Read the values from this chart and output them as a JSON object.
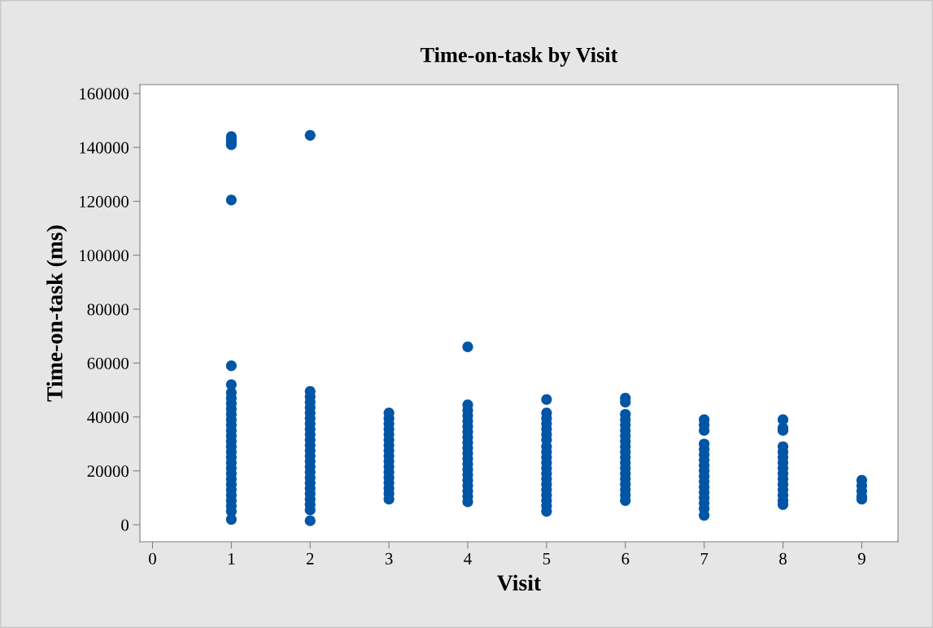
{
  "chart_data": {
    "type": "scatter",
    "title": "Time-on-task by Visit",
    "xlabel": "Visit",
    "ylabel": "Time-on-task (ms)",
    "series": [
      {
        "color": "#0055a5",
        "x": [
          1,
          1,
          1,
          1,
          1,
          1,
          1,
          1,
          1,
          1,
          1,
          1,
          1,
          1,
          1,
          1,
          1,
          1,
          1,
          1,
          1,
          1,
          1,
          1,
          1,
          1,
          1,
          1,
          1,
          1,
          1,
          2,
          2,
          2,
          2,
          2,
          2,
          2,
          2,
          2,
          2,
          2,
          2,
          2,
          2,
          2,
          2,
          2,
          2,
          2,
          2,
          2,
          2,
          2,
          2,
          2,
          3,
          3,
          3,
          3,
          3,
          3,
          3,
          3,
          3,
          3,
          3,
          3,
          3,
          3,
          3,
          3,
          3,
          4,
          4,
          4,
          4,
          4,
          4,
          4,
          4,
          4,
          4,
          4,
          4,
          4,
          4,
          4,
          4,
          4,
          4,
          4,
          4,
          5,
          5,
          5,
          5,
          5,
          5,
          5,
          5,
          5,
          5,
          5,
          5,
          5,
          5,
          5,
          5,
          5,
          5,
          5,
          5,
          6,
          6,
          6,
          6,
          6,
          6,
          6,
          6,
          6,
          6,
          6,
          6,
          6,
          6,
          6,
          6,
          6,
          6,
          6,
          7,
          7,
          7,
          7,
          7,
          7,
          7,
          7,
          7,
          7,
          7,
          7,
          7,
          7,
          7,
          7,
          7,
          8,
          8,
          8,
          8,
          8,
          8,
          8,
          8,
          8,
          8,
          8,
          8,
          8,
          8,
          8,
          9,
          9,
          9,
          9,
          9
        ],
        "values": [
          144000,
          143000,
          142000,
          141000,
          120500,
          59000,
          52000,
          49000,
          47000,
          45000,
          43000,
          41000,
          39000,
          37000,
          35000,
          33000,
          31000,
          29000,
          27000,
          25000,
          23000,
          21000,
          19000,
          17000,
          15000,
          13000,
          11000,
          9000,
          7000,
          5000,
          2000,
          144500,
          49500,
          47500,
          45500,
          43500,
          41500,
          39500,
          37500,
          35500,
          33500,
          31500,
          29500,
          27500,
          25500,
          23500,
          21500,
          19500,
          17500,
          15500,
          13500,
          11500,
          9500,
          7500,
          5500,
          1500,
          41500,
          39500,
          37500,
          35500,
          33500,
          31500,
          29500,
          27500,
          25500,
          23500,
          21500,
          19500,
          17500,
          15500,
          13500,
          11500,
          9500,
          66000,
          44500,
          42500,
          40500,
          38500,
          36500,
          34500,
          32500,
          30500,
          28500,
          26500,
          24500,
          22500,
          20500,
          18500,
          16500,
          14500,
          12500,
          10500,
          8500,
          46500,
          41500,
          39500,
          37500,
          35500,
          33500,
          31500,
          29000,
          27000,
          25000,
          23000,
          21000,
          19000,
          17000,
          15000,
          13000,
          11000,
          9000,
          7000,
          5000,
          47000,
          45500,
          41000,
          39000,
          37000,
          35000,
          33000,
          31000,
          29000,
          27000,
          25000,
          23000,
          21000,
          19000,
          17000,
          15000,
          13000,
          11000,
          9000,
          39000,
          37000,
          35000,
          30000,
          28000,
          26000,
          24000,
          22000,
          20000,
          18000,
          16000,
          14000,
          12000,
          10000,
          8000,
          6000,
          3500,
          39000,
          36000,
          35000,
          29000,
          27000,
          25000,
          23000,
          21000,
          19000,
          17000,
          15000,
          13000,
          11000,
          9000,
          7500,
          16500,
          14500,
          12500,
          10500,
          9500
        ]
      }
    ],
    "xlim": [
      -0.16,
      9.46
    ],
    "xticks": [
      0,
      1,
      2,
      3,
      4,
      5,
      6,
      7,
      8,
      9
    ],
    "ylim": [
      -6300,
      163300
    ],
    "yticks": [
      0,
      20000,
      40000,
      60000,
      80000,
      100000,
      120000,
      140000,
      160000
    ],
    "marker": "circle",
    "grid": false,
    "legend": false
  }
}
